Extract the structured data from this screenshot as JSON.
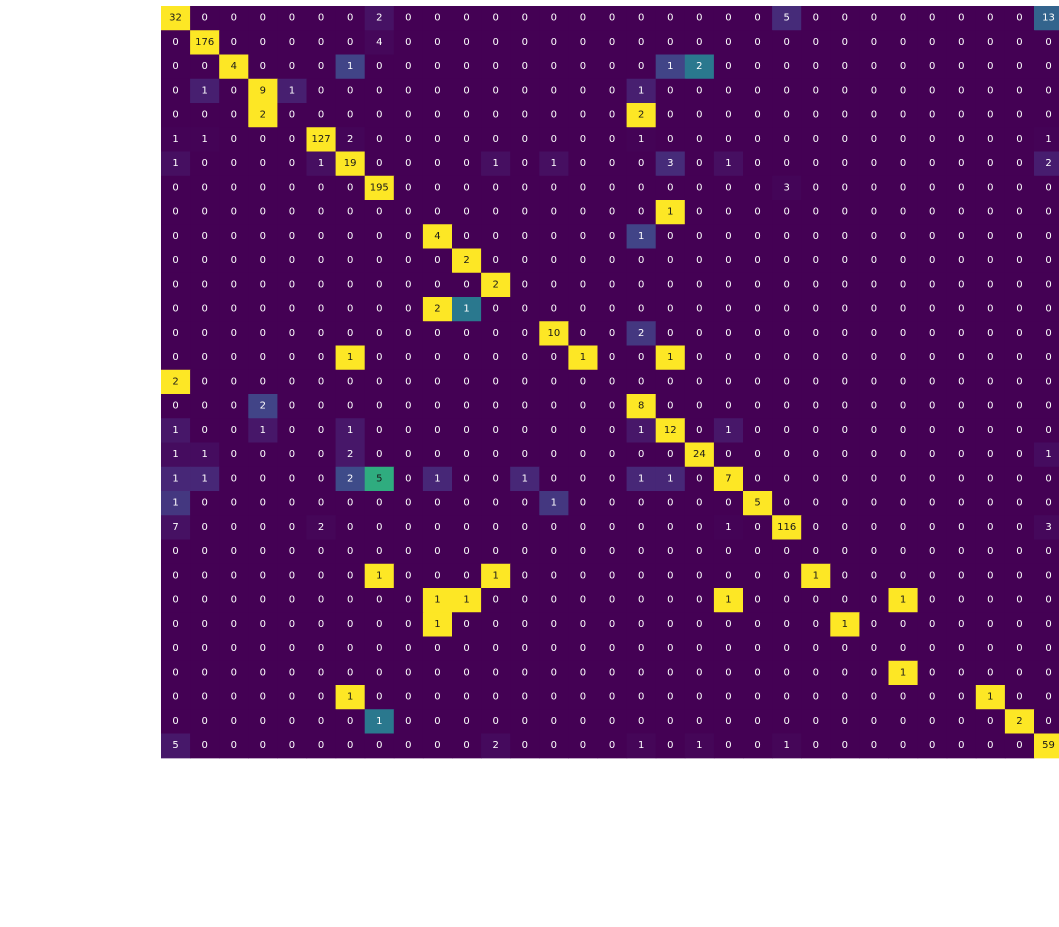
{
  "chart_data": {
    "type": "heatmap",
    "title": "",
    "xlabel": "",
    "ylabel": "",
    "colormap": "viridis",
    "value_range": [
      0,
      195
    ],
    "grid": false,
    "row_labels": [
      "",
      "",
      "",
      "",
      "",
      "",
      "",
      "",
      "",
      "",
      "",
      "",
      "",
      "",
      "",
      "",
      "",
      "",
      "",
      "",
      "",
      "",
      "",
      "",
      "",
      "",
      "",
      "",
      "",
      "",
      ""
    ],
    "col_labels": [
      "",
      "",
      "",
      "",
      "",
      "",
      "",
      "",
      "",
      "",
      "",
      "",
      "",
      "",
      "",
      "",
      "",
      "",
      "",
      "",
      "",
      "",
      "",
      "",
      "",
      "",
      "",
      "",
      "",
      "",
      ""
    ],
    "matrix": [
      [
        32,
        0,
        0,
        0,
        0,
        0,
        0,
        2,
        0,
        0,
        0,
        0,
        0,
        0,
        0,
        0,
        0,
        0,
        0,
        0,
        0,
        5,
        0,
        0,
        0,
        0,
        0,
        0,
        0,
        0,
        13
      ],
      [
        0,
        176,
        0,
        0,
        0,
        0,
        0,
        4,
        0,
        0,
        0,
        0,
        0,
        0,
        0,
        0,
        0,
        0,
        0,
        0,
        0,
        0,
        0,
        0,
        0,
        0,
        0,
        0,
        0,
        0,
        0
      ],
      [
        0,
        0,
        4,
        0,
        0,
        0,
        1,
        0,
        0,
        0,
        0,
        0,
        0,
        0,
        0,
        0,
        0,
        1,
        2,
        0,
        0,
        0,
        0,
        0,
        0,
        0,
        0,
        0,
        0,
        0,
        0
      ],
      [
        0,
        1,
        0,
        9,
        1,
        0,
        0,
        0,
        0,
        0,
        0,
        0,
        0,
        0,
        0,
        0,
        1,
        0,
        0,
        0,
        0,
        0,
        0,
        0,
        0,
        0,
        0,
        0,
        0,
        0,
        0
      ],
      [
        0,
        0,
        0,
        2,
        0,
        0,
        0,
        0,
        0,
        0,
        0,
        0,
        0,
        0,
        0,
        0,
        2,
        0,
        0,
        0,
        0,
        0,
        0,
        0,
        0,
        0,
        0,
        0,
        0,
        0,
        0
      ],
      [
        1,
        1,
        0,
        0,
        0,
        127,
        2,
        0,
        0,
        0,
        0,
        0,
        0,
        0,
        0,
        0,
        1,
        0,
        0,
        0,
        0,
        0,
        0,
        0,
        0,
        0,
        0,
        0,
        0,
        0,
        1
      ],
      [
        1,
        0,
        0,
        0,
        0,
        1,
        19,
        0,
        0,
        0,
        0,
        1,
        0,
        1,
        0,
        0,
        0,
        3,
        0,
        1,
        0,
        0,
        0,
        0,
        0,
        0,
        0,
        0,
        0,
        0,
        2
      ],
      [
        0,
        0,
        0,
        0,
        0,
        0,
        0,
        195,
        0,
        0,
        0,
        0,
        0,
        0,
        0,
        0,
        0,
        0,
        0,
        0,
        0,
        3,
        0,
        0,
        0,
        0,
        0,
        0,
        0,
        0,
        0
      ],
      [
        0,
        0,
        0,
        0,
        0,
        0,
        0,
        0,
        0,
        0,
        0,
        0,
        0,
        0,
        0,
        0,
        0,
        1,
        0,
        0,
        0,
        0,
        0,
        0,
        0,
        0,
        0,
        0,
        0,
        0,
        0
      ],
      [
        0,
        0,
        0,
        0,
        0,
        0,
        0,
        0,
        0,
        4,
        0,
        0,
        0,
        0,
        0,
        0,
        1,
        0,
        0,
        0,
        0,
        0,
        0,
        0,
        0,
        0,
        0,
        0,
        0,
        0,
        0
      ],
      [
        0,
        0,
        0,
        0,
        0,
        0,
        0,
        0,
        0,
        0,
        2,
        0,
        0,
        0,
        0,
        0,
        0,
        0,
        0,
        0,
        0,
        0,
        0,
        0,
        0,
        0,
        0,
        0,
        0,
        0,
        0
      ],
      [
        0,
        0,
        0,
        0,
        0,
        0,
        0,
        0,
        0,
        0,
        0,
        2,
        0,
        0,
        0,
        0,
        0,
        0,
        0,
        0,
        0,
        0,
        0,
        0,
        0,
        0,
        0,
        0,
        0,
        0,
        0
      ],
      [
        0,
        0,
        0,
        0,
        0,
        0,
        0,
        0,
        0,
        2,
        1,
        0,
        0,
        0,
        0,
        0,
        0,
        0,
        0,
        0,
        0,
        0,
        0,
        0,
        0,
        0,
        0,
        0,
        0,
        0,
        0
      ],
      [
        0,
        0,
        0,
        0,
        0,
        0,
        0,
        0,
        0,
        0,
        0,
        0,
        0,
        10,
        0,
        0,
        2,
        0,
        0,
        0,
        0,
        0,
        0,
        0,
        0,
        0,
        0,
        0,
        0,
        0,
        0
      ],
      [
        0,
        0,
        0,
        0,
        0,
        0,
        1,
        0,
        0,
        0,
        0,
        0,
        0,
        0,
        1,
        0,
        0,
        1,
        0,
        0,
        0,
        0,
        0,
        0,
        0,
        0,
        0,
        0,
        0,
        0,
        0
      ],
      [
        2,
        0,
        0,
        0,
        0,
        0,
        0,
        0,
        0,
        0,
        0,
        0,
        0,
        0,
        0,
        0,
        0,
        0,
        0,
        0,
        0,
        0,
        0,
        0,
        0,
        0,
        0,
        0,
        0,
        0,
        0
      ],
      [
        0,
        0,
        0,
        2,
        0,
        0,
        0,
        0,
        0,
        0,
        0,
        0,
        0,
        0,
        0,
        0,
        8,
        0,
        0,
        0,
        0,
        0,
        0,
        0,
        0,
        0,
        0,
        0,
        0,
        0,
        0
      ],
      [
        1,
        0,
        0,
        1,
        0,
        0,
        1,
        0,
        0,
        0,
        0,
        0,
        0,
        0,
        0,
        0,
        1,
        12,
        0,
        1,
        0,
        0,
        0,
        0,
        0,
        0,
        0,
        0,
        0,
        0,
        0
      ],
      [
        1,
        1,
        0,
        0,
        0,
        0,
        2,
        0,
        0,
        0,
        0,
        0,
        0,
        0,
        0,
        0,
        0,
        0,
        24,
        0,
        0,
        0,
        0,
        0,
        0,
        0,
        0,
        0,
        0,
        0,
        1
      ],
      [
        1,
        1,
        0,
        0,
        0,
        0,
        2,
        5,
        0,
        1,
        0,
        0,
        1,
        0,
        0,
        0,
        1,
        1,
        0,
        7,
        0,
        0,
        0,
        0,
        0,
        0,
        0,
        0,
        0,
        0,
        0
      ],
      [
        1,
        0,
        0,
        0,
        0,
        0,
        0,
        0,
        0,
        0,
        0,
        0,
        0,
        1,
        0,
        0,
        0,
        0,
        0,
        0,
        5,
        0,
        0,
        0,
        0,
        0,
        0,
        0,
        0,
        0,
        0
      ],
      [
        7,
        0,
        0,
        0,
        0,
        2,
        0,
        0,
        0,
        0,
        0,
        0,
        0,
        0,
        0,
        0,
        0,
        0,
        0,
        1,
        0,
        116,
        0,
        0,
        0,
        0,
        0,
        0,
        0,
        0,
        3
      ],
      [
        0,
        0,
        0,
        0,
        0,
        0,
        0,
        0,
        0,
        0,
        0,
        0,
        0,
        0,
        0,
        0,
        0,
        0,
        0,
        0,
        0,
        0,
        0,
        0,
        0,
        0,
        0,
        0,
        0,
        0,
        0
      ],
      [
        0,
        0,
        0,
        0,
        0,
        0,
        0,
        1,
        0,
        0,
        0,
        1,
        0,
        0,
        0,
        0,
        0,
        0,
        0,
        0,
        0,
        0,
        1,
        0,
        0,
        0,
        0,
        0,
        0,
        0,
        0
      ],
      [
        0,
        0,
        0,
        0,
        0,
        0,
        0,
        0,
        0,
        1,
        1,
        0,
        0,
        0,
        0,
        0,
        0,
        0,
        0,
        1,
        0,
        0,
        0,
        0,
        0,
        1,
        0,
        0,
        0,
        0,
        0
      ],
      [
        0,
        0,
        0,
        0,
        0,
        0,
        0,
        0,
        0,
        1,
        0,
        0,
        0,
        0,
        0,
        0,
        0,
        0,
        0,
        0,
        0,
        0,
        0,
        1,
        0,
        0,
        0,
        0,
        0,
        0,
        0
      ],
      [
        0,
        0,
        0,
        0,
        0,
        0,
        0,
        0,
        0,
        0,
        0,
        0,
        0,
        0,
        0,
        0,
        0,
        0,
        0,
        0,
        0,
        0,
        0,
        0,
        0,
        0,
        0,
        0,
        0,
        0,
        0
      ],
      [
        0,
        0,
        0,
        0,
        0,
        0,
        0,
        0,
        0,
        0,
        0,
        0,
        0,
        0,
        0,
        0,
        0,
        0,
        0,
        0,
        0,
        0,
        0,
        0,
        0,
        1,
        0,
        0,
        0,
        0,
        0
      ],
      [
        0,
        0,
        0,
        0,
        0,
        0,
        1,
        0,
        0,
        0,
        0,
        0,
        0,
        0,
        0,
        0,
        0,
        0,
        0,
        0,
        0,
        0,
        0,
        0,
        0,
        0,
        0,
        0,
        1,
        0,
        0
      ],
      [
        0,
        0,
        0,
        0,
        0,
        0,
        0,
        1,
        0,
        0,
        0,
        0,
        0,
        0,
        0,
        0,
        0,
        0,
        0,
        0,
        0,
        0,
        0,
        0,
        0,
        0,
        0,
        0,
        0,
        2,
        0
      ],
      [
        5,
        0,
        0,
        0,
        0,
        0,
        0,
        0,
        0,
        0,
        0,
        2,
        0,
        0,
        0,
        0,
        1,
        0,
        1,
        0,
        0,
        1,
        0,
        0,
        0,
        0,
        0,
        0,
        0,
        0,
        59
      ]
    ]
  }
}
